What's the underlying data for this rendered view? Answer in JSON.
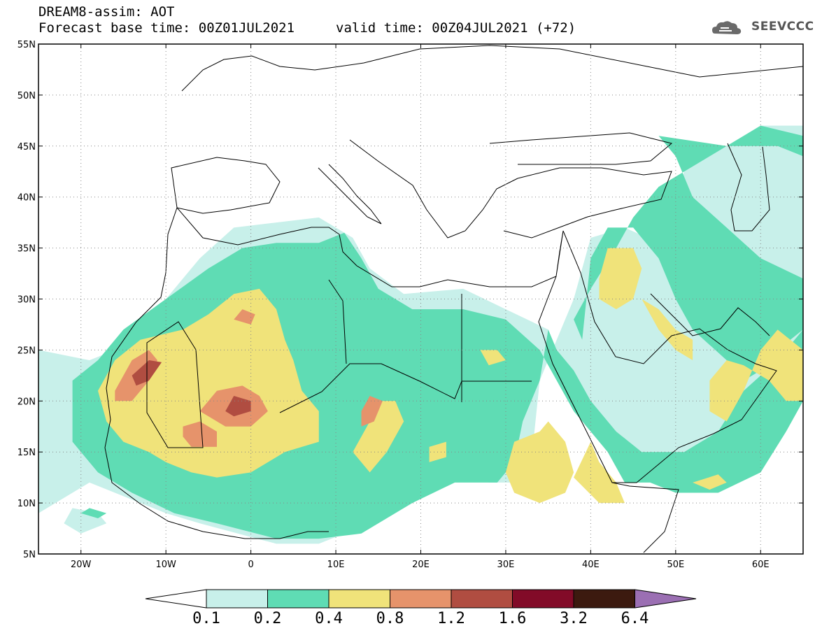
{
  "header": {
    "model_line": "DREAM8-assim: AOT",
    "base_time_line": "Forecast base time: 00Z01JUL2021",
    "valid_time_line": "valid time: 00Z04JUL2021 (+72)",
    "logo_text": "SEEVCCC"
  },
  "map": {
    "projection": "cylindrical",
    "lon_range": [
      -25,
      65
    ],
    "lat_range": [
      5,
      55
    ],
    "lat_ticks": [
      {
        "value": 55,
        "label": "55N"
      },
      {
        "value": 50,
        "label": "50N"
      },
      {
        "value": 45,
        "label": "45N"
      },
      {
        "value": 40,
        "label": "40N"
      },
      {
        "value": 35,
        "label": "35N"
      },
      {
        "value": 30,
        "label": "30N"
      },
      {
        "value": 25,
        "label": "25N"
      },
      {
        "value": 20,
        "label": "20N"
      },
      {
        "value": 15,
        "label": "15N"
      },
      {
        "value": 10,
        "label": "10N"
      },
      {
        "value": 5,
        "label": "5N"
      }
    ],
    "lon_ticks": [
      {
        "value": -20,
        "label": "20W"
      },
      {
        "value": -10,
        "label": "10W"
      },
      {
        "value": 0,
        "label": "0"
      },
      {
        "value": 10,
        "label": "10E"
      },
      {
        "value": 20,
        "label": "20E"
      },
      {
        "value": 30,
        "label": "30E"
      },
      {
        "value": 40,
        "label": "40E"
      },
      {
        "value": 50,
        "label": "50E"
      },
      {
        "value": 60,
        "label": "60E"
      }
    ],
    "grid": "dotted",
    "field_regions": [
      {
        "level": 1,
        "points": [
          [
            -25,
            25
          ],
          [
            -19,
            24
          ],
          [
            -13,
            26
          ],
          [
            -10,
            30
          ],
          [
            -6,
            34
          ],
          [
            -2,
            37
          ],
          [
            3,
            37.5
          ],
          [
            8,
            38
          ],
          [
            12,
            36
          ],
          [
            14,
            33
          ],
          [
            18,
            30.5
          ],
          [
            25,
            31
          ],
          [
            30,
            29
          ],
          [
            35,
            27
          ],
          [
            38,
            21
          ],
          [
            40,
            20
          ],
          [
            42,
            17
          ],
          [
            46,
            14
          ],
          [
            52,
            14
          ],
          [
            56,
            18
          ],
          [
            60,
            22
          ],
          [
            63,
            25
          ],
          [
            65,
            25
          ],
          [
            65,
            47
          ],
          [
            60,
            47
          ],
          [
            56,
            45
          ],
          [
            52,
            45
          ],
          [
            50,
            40
          ],
          [
            48,
            35.5
          ],
          [
            44,
            37
          ],
          [
            40,
            36
          ],
          [
            38,
            30
          ],
          [
            36,
            26
          ],
          [
            34,
            22
          ],
          [
            33,
            14
          ],
          [
            31,
            12
          ],
          [
            28,
            12
          ],
          [
            25,
            13
          ],
          [
            21,
            11
          ],
          [
            14,
            8
          ],
          [
            8,
            6
          ],
          [
            3,
            6
          ],
          [
            -6,
            8
          ],
          [
            -10,
            9
          ],
          [
            -16,
            11
          ],
          [
            -19,
            12
          ],
          [
            -25,
            9
          ]
        ]
      },
      {
        "level": 1,
        "points": [
          [
            -21,
            9.5
          ],
          [
            -18,
            9
          ],
          [
            -17,
            8
          ],
          [
            -20,
            7
          ],
          [
            -22,
            8
          ]
        ]
      },
      {
        "level": 2,
        "points": [
          [
            -21,
            22
          ],
          [
            -18,
            24
          ],
          [
            -15,
            27
          ],
          [
            -10,
            30
          ],
          [
            -5,
            33
          ],
          [
            -1,
            35
          ],
          [
            3,
            35.5
          ],
          [
            8,
            35.5
          ],
          [
            11,
            36.5
          ],
          [
            13,
            34
          ],
          [
            15,
            31
          ],
          [
            19,
            29
          ],
          [
            25,
            29
          ],
          [
            30,
            28
          ],
          [
            34,
            25
          ],
          [
            36,
            22
          ],
          [
            38,
            19
          ],
          [
            40,
            17
          ],
          [
            42,
            15
          ],
          [
            44,
            12
          ],
          [
            47,
            12
          ],
          [
            50,
            11
          ],
          [
            55,
            11
          ],
          [
            60,
            13
          ],
          [
            63,
            17
          ],
          [
            65,
            20
          ],
          [
            65,
            27
          ],
          [
            62,
            24
          ],
          [
            58,
            21
          ],
          [
            55,
            17
          ],
          [
            51,
            15
          ],
          [
            46,
            15
          ],
          [
            43,
            17
          ],
          [
            40,
            20
          ],
          [
            38,
            23
          ],
          [
            36,
            25
          ],
          [
            35,
            27
          ],
          [
            34,
            22
          ],
          [
            32,
            18
          ],
          [
            31,
            14
          ],
          [
            29,
            12
          ],
          [
            24,
            12
          ],
          [
            19,
            10
          ],
          [
            13,
            7
          ],
          [
            8,
            6.5
          ],
          [
            3,
            6.5
          ],
          [
            -4,
            8
          ],
          [
            -9,
            9
          ],
          [
            -14,
            11
          ],
          [
            -18,
            13
          ],
          [
            -21,
            16
          ]
        ]
      },
      {
        "level": 2,
        "points": [
          [
            40,
            34
          ],
          [
            42,
            37
          ],
          [
            45,
            37
          ],
          [
            48,
            34
          ],
          [
            50,
            30
          ],
          [
            52,
            27
          ],
          [
            56,
            24
          ],
          [
            58,
            22
          ],
          [
            60,
            23
          ],
          [
            62,
            25
          ],
          [
            65,
            27
          ],
          [
            65,
            32
          ],
          [
            60,
            34
          ],
          [
            56,
            37
          ],
          [
            52,
            40
          ],
          [
            50,
            44
          ],
          [
            48,
            46
          ],
          [
            56,
            45
          ],
          [
            62,
            45
          ],
          [
            65,
            44
          ],
          [
            65,
            46
          ],
          [
            60,
            47
          ],
          [
            52,
            43
          ],
          [
            48,
            41
          ],
          [
            45,
            38
          ],
          [
            43,
            35
          ],
          [
            40,
            31
          ],
          [
            38,
            28
          ],
          [
            39,
            26
          ]
        ]
      },
      {
        "level": 2,
        "points": [
          [
            -19,
            9.5
          ],
          [
            -17,
            9
          ],
          [
            -18,
            8.5
          ],
          [
            -20,
            9
          ]
        ]
      },
      {
        "level": 3,
        "points": [
          [
            -18,
            21
          ],
          [
            -16,
            24
          ],
          [
            -13,
            26
          ],
          [
            -8,
            27
          ],
          [
            -5,
            28.5
          ],
          [
            -2,
            30.5
          ],
          [
            1,
            31
          ],
          [
            3,
            29
          ],
          [
            4,
            26
          ],
          [
            5,
            24
          ],
          [
            6,
            21
          ],
          [
            8,
            19
          ],
          [
            8,
            16
          ],
          [
            4,
            15
          ],
          [
            0,
            13
          ],
          [
            -4,
            12.5
          ],
          [
            -7,
            13
          ],
          [
            -10,
            14
          ],
          [
            -12,
            15
          ],
          [
            -15,
            16
          ],
          [
            -17,
            18
          ]
        ]
      },
      {
        "level": 3,
        "points": [
          [
            12,
            15
          ],
          [
            14,
            18
          ],
          [
            15,
            20
          ],
          [
            17,
            20
          ],
          [
            18,
            18
          ],
          [
            16,
            15
          ],
          [
            14,
            13
          ]
        ]
      },
      {
        "level": 3,
        "points": [
          [
            31,
            16
          ],
          [
            34,
            17
          ],
          [
            35,
            18
          ],
          [
            37,
            16
          ],
          [
            38,
            13
          ],
          [
            37,
            11
          ],
          [
            34,
            10
          ],
          [
            31,
            11
          ],
          [
            30,
            13
          ]
        ]
      },
      {
        "level": 3,
        "points": [
          [
            38,
            12.5
          ],
          [
            40,
            16
          ],
          [
            41,
            14
          ],
          [
            43,
            12
          ],
          [
            44,
            10
          ],
          [
            41,
            10
          ]
        ]
      },
      {
        "level": 3,
        "points": [
          [
            41,
            32
          ],
          [
            42,
            35
          ],
          [
            45,
            35
          ],
          [
            46,
            33
          ],
          [
            45,
            30
          ],
          [
            43,
            29
          ],
          [
            41,
            30
          ]
        ]
      },
      {
        "level": 3,
        "points": [
          [
            46,
            30
          ],
          [
            48,
            29
          ],
          [
            50,
            27
          ],
          [
            52,
            26
          ],
          [
            52,
            24
          ],
          [
            50,
            25
          ],
          [
            48,
            27
          ]
        ]
      },
      {
        "level": 3,
        "points": [
          [
            54,
            22
          ],
          [
            56,
            24
          ],
          [
            58,
            23.5
          ],
          [
            61,
            22
          ],
          [
            63,
            20
          ],
          [
            65,
            20
          ],
          [
            65,
            25
          ],
          [
            62,
            27
          ],
          [
            60,
            25
          ],
          [
            58,
            21
          ],
          [
            56,
            18
          ],
          [
            54,
            19
          ]
        ]
      },
      {
        "level": 3,
        "points": [
          [
            27,
            25
          ],
          [
            29,
            25
          ],
          [
            30,
            24
          ],
          [
            28,
            23.5
          ]
        ]
      },
      {
        "level": 3,
        "points": [
          [
            21,
            15.5
          ],
          [
            23,
            16
          ],
          [
            23,
            14.5
          ],
          [
            21,
            14
          ]
        ]
      },
      {
        "level": 3,
        "points": [
          [
            52,
            12
          ],
          [
            55,
            12.8
          ],
          [
            56,
            12
          ],
          [
            54,
            11.3
          ]
        ]
      },
      {
        "level": 4,
        "points": [
          [
            -16,
            21
          ],
          [
            -14,
            24
          ],
          [
            -12,
            25
          ],
          [
            -11,
            24
          ],
          [
            -12,
            22
          ],
          [
            -14,
            20
          ],
          [
            -16,
            20
          ]
        ]
      },
      {
        "level": 4,
        "points": [
          [
            -6,
            19
          ],
          [
            -4,
            21
          ],
          [
            -1,
            21.5
          ],
          [
            1,
            20.5
          ],
          [
            2,
            19
          ],
          [
            0,
            17.5
          ],
          [
            -3,
            17.5
          ]
        ]
      },
      {
        "level": 4,
        "points": [
          [
            -8,
            17.5
          ],
          [
            -6,
            18
          ],
          [
            -4,
            17
          ],
          [
            -4,
            15.5
          ],
          [
            -7,
            15.5
          ],
          [
            -8,
            16.5
          ]
        ]
      },
      {
        "level": 4,
        "points": [
          [
            13,
            19
          ],
          [
            14,
            20.5
          ],
          [
            15.5,
            20
          ],
          [
            14.5,
            18
          ],
          [
            13,
            17.5
          ]
        ]
      },
      {
        "level": 4,
        "points": [
          [
            -2,
            28
          ],
          [
            -1,
            29
          ],
          [
            0.5,
            28.5
          ],
          [
            0,
            27.5
          ]
        ]
      },
      {
        "level": 5,
        "points": [
          [
            -14,
            22.5
          ],
          [
            -12,
            24
          ],
          [
            -10.5,
            23.8
          ],
          [
            -12,
            22
          ],
          [
            -13.5,
            21.5
          ]
        ]
      },
      {
        "level": 5,
        "points": [
          [
            -3,
            19
          ],
          [
            -2,
            20.5
          ],
          [
            0,
            20
          ],
          [
            0,
            19
          ],
          [
            -2,
            18.5
          ]
        ]
      }
    ]
  },
  "colorbar": {
    "colors": [
      "#c8f0ea",
      "#5fdcb4",
      "#f0e37a",
      "#e6936b",
      "#b04d41",
      "#820b28",
      "#3c1a0f"
    ],
    "under_color": "#ffffff",
    "over_color": "#9b6fb3",
    "labels": [
      "0.1",
      "0.2",
      "0.4",
      "0.8",
      "1.2",
      "1.6",
      "3.2",
      "6.4"
    ]
  }
}
